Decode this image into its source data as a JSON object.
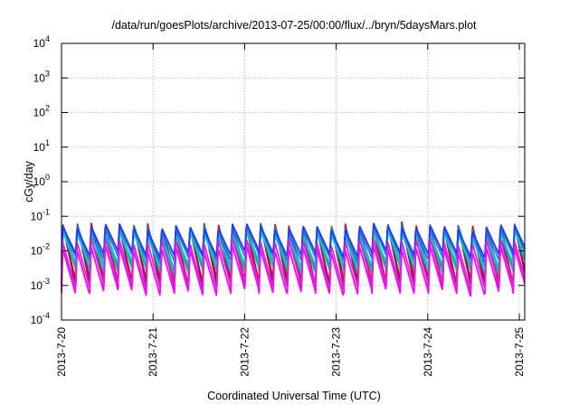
{
  "chart_data": {
    "type": "line",
    "title": "/data/run/goesPlots/archive/2013-07-25/00:00/flux/../bryn/5daysMars.plot",
    "xlabel": "Coordinated Universal Time (UTC)",
    "ylabel": "cGy/day",
    "yscale": "log",
    "ylim": [
      0.0001,
      10000
    ],
    "xlim": [
      "2013-07-20",
      "2013-07-25 00:30"
    ],
    "grid": true,
    "y_ticks": [
      {
        "base": "10",
        "exp": "-4"
      },
      {
        "base": "10",
        "exp": "-3"
      },
      {
        "base": "10",
        "exp": "-2"
      },
      {
        "base": "10",
        "exp": "-1"
      },
      {
        "base": "10",
        "exp": "0"
      },
      {
        "base": "10",
        "exp": "1"
      },
      {
        "base": "10",
        "exp": "2"
      },
      {
        "base": "10",
        "exp": "3"
      },
      {
        "base": "10",
        "exp": "4"
      }
    ],
    "x_ticks": [
      "2013-7-20",
      "2013-7-21",
      "2013-7-22",
      "2013-7-23",
      "2013-7-24",
      "2013-7-25"
    ],
    "cycle_hours": 3.7,
    "series": [
      {
        "color": "#ff0000",
        "peak": 0.055,
        "trough": 0.0013
      },
      {
        "color": "#8b1a4a",
        "peak": 0.05,
        "trough": 0.0009
      },
      {
        "color": "#1a7fa0",
        "peak": 0.05,
        "trough": 0.0035
      },
      {
        "color": "#20b2aa",
        "peak": 0.035,
        "trough": 0.0025
      },
      {
        "color": "#00cccc",
        "peak": 0.03,
        "trough": 0.004
      },
      {
        "color": "#4169e1",
        "peak": 0.045,
        "trough": 0.006
      },
      {
        "color": "#1e3cff",
        "peak": 0.05,
        "trough": 0.008
      },
      {
        "color": "#ff00ff",
        "peak": 0.012,
        "trough": 0.0006
      },
      {
        "color": "#dd22dd",
        "peak": 0.02,
        "trough": 0.0009
      }
    ]
  }
}
